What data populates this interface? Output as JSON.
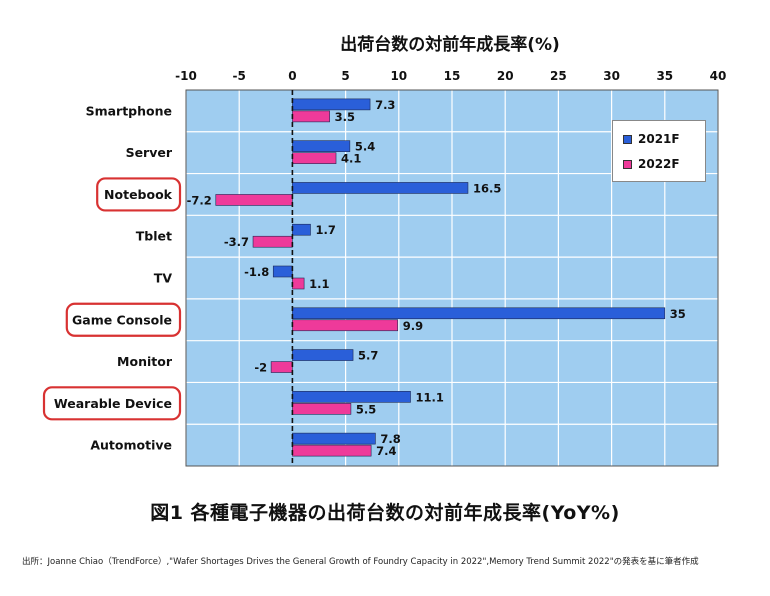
{
  "axis_title": "出荷台数の対前年成長率(%)",
  "figure_title": "図1  各種電子機器の出荷台数の対前年成長率(YoY%)",
  "source": "出所：Joanne Chiao（TrendForce）,\"Wafer Shortages Drives the General Growth of Foundry Capacity in 2022\",Memory Trend Summit 2022\"の発表を基に筆者作成",
  "colors": {
    "plot_bg": "#9fcdf0",
    "series_2021": "#2a5fd9",
    "series_2022": "#ee3a9a",
    "highlight": "#d83232"
  },
  "chart_data": {
    "type": "bar",
    "orientation": "horizontal",
    "categories": [
      "Smartphone",
      "Server",
      "Notebook",
      "Tblet",
      "TV",
      "Game Console",
      "Monitor",
      "Wearable Device",
      "Automotive"
    ],
    "highlighted_categories": [
      "Notebook",
      "Game Console",
      "Wearable Device"
    ],
    "series": [
      {
        "name": "2021F",
        "values": [
          7.3,
          5.4,
          16.5,
          1.7,
          -1.8,
          35,
          5.7,
          11.1,
          7.8
        ],
        "labels": [
          "7.3",
          "5.4",
          "16.5",
          "1.7",
          "-1.8",
          "35",
          "5.7",
          "11.1",
          "7.8"
        ]
      },
      {
        "name": "2022F",
        "values": [
          3.5,
          4.1,
          -7.2,
          -3.7,
          1.1,
          9.9,
          -2,
          5.5,
          7.4
        ],
        "labels": [
          "3.5",
          "4.1",
          "-7.2",
          "-3.7",
          "1.1",
          "9.9",
          "-2",
          "5.5",
          "7.4"
        ]
      }
    ],
    "x_ticks": [
      "-10",
      "-5",
      "0",
      "5",
      "10",
      "15",
      "20",
      "25",
      "30",
      "35",
      "40"
    ],
    "xlim": [
      -10,
      40
    ],
    "grid": true,
    "legend_position": "top-right"
  }
}
